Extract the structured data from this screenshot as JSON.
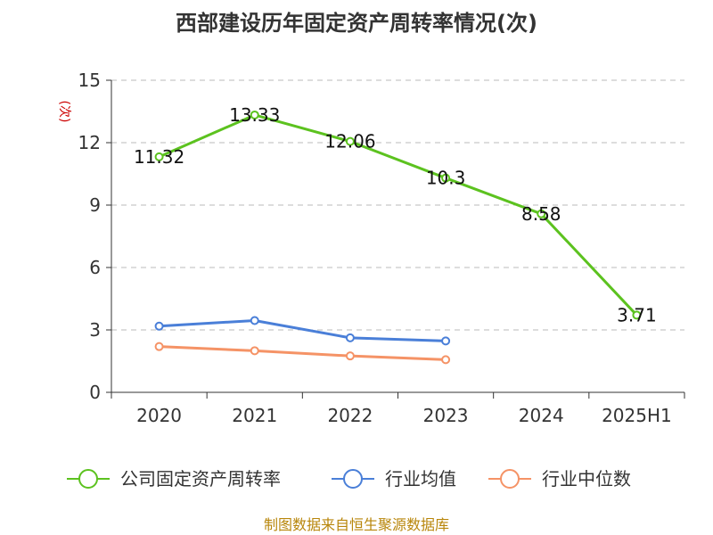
{
  "chart_data": {
    "type": "line",
    "title": "西部建设历年固定资产周转率情况(次)",
    "ylabel": "(次)",
    "xlabel": "",
    "categories": [
      "2020",
      "2021",
      "2022",
      "2023",
      "2024",
      "2025H1"
    ],
    "ylim": [
      0,
      15
    ],
    "yticks": [
      0,
      3,
      6,
      9,
      12,
      15
    ],
    "grid": "horizontal-dashed",
    "legend_position": "bottom",
    "series": [
      {
        "name": "公司固定资产周转率",
        "color": "#5cc21f",
        "values": [
          11.32,
          13.33,
          12.06,
          10.3,
          8.58,
          3.71
        ],
        "labels": [
          "11.32",
          "13.33",
          "12.06",
          "10.3",
          "8.58",
          "3.71"
        ]
      },
      {
        "name": "行业均值",
        "color": "#4a7fd8",
        "values": [
          3.18,
          3.45,
          2.62,
          2.47,
          null,
          null
        ]
      },
      {
        "name": "行业中位数",
        "color": "#f59366",
        "values": [
          2.2,
          2.0,
          1.75,
          1.57,
          null,
          null
        ]
      }
    ],
    "source": "制图数据来自恒生聚源数据库"
  }
}
